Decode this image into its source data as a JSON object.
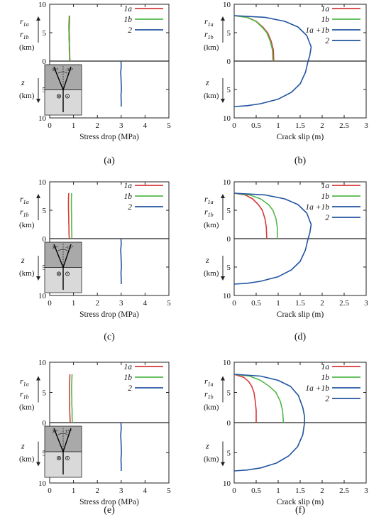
{
  "colors": {
    "series_1a": "#d63a3a",
    "series_1b": "#52b84a",
    "series_2": "#2255a0",
    "axis": "#222222",
    "inset_dark": "#a9a9a9",
    "inset_light": "#d9d9d9"
  },
  "side_labels": {
    "upper_r1a": "r",
    "upper_r1a_sub": "1a",
    "upper_r1b": "r",
    "upper_r1b_sub": "1b",
    "upper_unit": "(km)",
    "lower_z": "z",
    "lower_unit": "(km)"
  },
  "chart_data": [
    {
      "id": "a",
      "type": "line",
      "panel_label": "(a)",
      "xlabel": "Stress drop (MPa)",
      "xlim": [
        0,
        5
      ],
      "ylim": [
        -10,
        10
      ],
      "x_ticks": [
        "0",
        "1",
        "2",
        "3",
        "4",
        "5"
      ],
      "y_ticks": [
        "10",
        "5",
        "0",
        "5",
        "10"
      ],
      "inset": {
        "angle_left": "30°",
        "angle_right": "-30°"
      },
      "legend": [
        {
          "name": "1a",
          "color": "#d63a3a"
        },
        {
          "name": "1b",
          "color": "#52b84a"
        },
        {
          "name": "2",
          "color": "#2255a0"
        }
      ],
      "series": [
        {
          "name": "1a",
          "x": [
            0.85,
            0.84,
            0.84,
            0.83,
            0.83,
            0.82,
            0.82,
            0.83,
            0.84
          ],
          "y": [
            0,
            1,
            2,
            3,
            4,
            5,
            6,
            7,
            8
          ]
        },
        {
          "name": "1b",
          "x": [
            0.83,
            0.83,
            0.82,
            0.82,
            0.81,
            0.81,
            0.8,
            0.81,
            0.82
          ],
          "y": [
            0,
            1,
            2,
            3,
            4,
            5,
            6,
            7,
            8
          ]
        },
        {
          "name": "2",
          "x": [
            2.99,
            3.0,
            2.98,
            2.99,
            3.0,
            3.01,
            2.99,
            3.0,
            3.0
          ],
          "y": [
            0,
            -1,
            -2,
            -3,
            -4,
            -5,
            -6,
            -7,
            -8
          ]
        }
      ]
    },
    {
      "id": "b",
      "type": "line",
      "panel_label": "(b)",
      "xlabel": "Crack slip (m)",
      "xlim": [
        0,
        3
      ],
      "ylim": [
        -10,
        10
      ],
      "x_ticks": [
        "0",
        "0.5",
        "1",
        "1.5",
        "2",
        "2.5",
        "3"
      ],
      "y_ticks": [
        "10",
        "5",
        "0",
        "5",
        "10"
      ],
      "legend": [
        {
          "name": "1a",
          "color": "#d63a3a"
        },
        {
          "name": "1b",
          "color": "#52b84a"
        },
        {
          "name": "1a +1b",
          "color": "#2255a0"
        },
        {
          "name": "2",
          "color": "#2255a0"
        }
      ],
      "series": [
        {
          "name": "1a",
          "x": [
            0.0,
            0.3,
            0.5,
            0.65,
            0.76,
            0.84,
            0.89,
            0.9
          ],
          "y": [
            8,
            7.7,
            7,
            6,
            5,
            3.5,
            2,
            0
          ]
        },
        {
          "name": "1b",
          "x": [
            0.0,
            0.29,
            0.49,
            0.63,
            0.74,
            0.82,
            0.87,
            0.88
          ],
          "y": [
            8,
            7.7,
            7,
            6,
            5,
            3.5,
            2,
            0
          ]
        },
        {
          "name": "1a +1b",
          "x": [
            0.0,
            0.7,
            1.15,
            1.45,
            1.65,
            1.75,
            1.72,
            1.68
          ],
          "y": [
            8,
            7.7,
            7,
            6,
            4.5,
            2.5,
            1,
            0
          ]
        },
        {
          "name": "2",
          "x": [
            1.68,
            1.62,
            1.5,
            1.3,
            1.0,
            0.6,
            0.3,
            0.0
          ],
          "y": [
            0,
            -2,
            -4,
            -5.5,
            -6.7,
            -7.5,
            -7.85,
            -8
          ]
        }
      ]
    },
    {
      "id": "c",
      "type": "line",
      "panel_label": "(c)",
      "xlabel": "Stress drop (MPa)",
      "xlim": [
        0,
        5
      ],
      "ylim": [
        -10,
        10
      ],
      "x_ticks": [
        "0",
        "1",
        "2",
        "3",
        "4",
        "5"
      ],
      "y_ticks": [
        "10",
        "5",
        "0",
        "5",
        "10"
      ],
      "inset": {
        "angle_left": "30°",
        "angle_right": "-15°"
      },
      "legend": [
        {
          "name": "1a",
          "color": "#d63a3a"
        },
        {
          "name": "1b",
          "color": "#52b84a"
        },
        {
          "name": "2",
          "color": "#2255a0"
        }
      ],
      "series": [
        {
          "name": "1a",
          "x": [
            0.82,
            0.81,
            0.81,
            0.8,
            0.8,
            0.79,
            0.79,
            0.79,
            0.8
          ],
          "y": [
            0,
            1,
            2,
            3,
            4,
            5,
            6,
            7,
            8
          ]
        },
        {
          "name": "1b",
          "x": [
            0.93,
            0.93,
            0.92,
            0.92,
            0.92,
            0.91,
            0.91,
            0.91,
            0.92
          ],
          "y": [
            0,
            1,
            2,
            3,
            4,
            5,
            6,
            7,
            8
          ]
        },
        {
          "name": "2",
          "x": [
            2.99,
            3.0,
            2.98,
            2.99,
            3.0,
            3.01,
            2.99,
            3.0,
            3.0
          ],
          "y": [
            0,
            -1,
            -2,
            -3,
            -4,
            -5,
            -6,
            -7,
            -8
          ]
        }
      ]
    },
    {
      "id": "d",
      "type": "line",
      "panel_label": "(d)",
      "xlabel": "Crack slip (m)",
      "xlim": [
        0,
        3
      ],
      "ylim": [
        -10,
        10
      ],
      "x_ticks": [
        "0",
        "0.5",
        "1",
        "1.5",
        "2",
        "2.5",
        "3"
      ],
      "y_ticks": [
        "10",
        "5",
        "0",
        "5",
        "10"
      ],
      "legend": [
        {
          "name": "1a",
          "color": "#d63a3a"
        },
        {
          "name": "1b",
          "color": "#52b84a"
        },
        {
          "name": "1a +1b",
          "color": "#2255a0"
        },
        {
          "name": "2",
          "color": "#2255a0"
        }
      ],
      "series": [
        {
          "name": "1a",
          "x": [
            0.0,
            0.25,
            0.42,
            0.55,
            0.64,
            0.7,
            0.73,
            0.74
          ],
          "y": [
            8,
            7.7,
            7,
            6,
            5,
            3.5,
            2,
            0
          ]
        },
        {
          "name": "1b",
          "x": [
            0.0,
            0.35,
            0.6,
            0.78,
            0.88,
            0.95,
            0.98,
            0.98
          ],
          "y": [
            8,
            7.7,
            7,
            6,
            5,
            3.5,
            2,
            0
          ]
        },
        {
          "name": "1a +1b",
          "x": [
            0.0,
            0.7,
            1.15,
            1.45,
            1.65,
            1.75,
            1.72,
            1.68
          ],
          "y": [
            8,
            7.7,
            7,
            6,
            4.5,
            2.5,
            1,
            0
          ]
        },
        {
          "name": "2",
          "x": [
            1.68,
            1.62,
            1.5,
            1.3,
            1.0,
            0.6,
            0.3,
            0.0
          ],
          "y": [
            0,
            -2,
            -4,
            -5.5,
            -6.7,
            -7.5,
            -7.85,
            -8
          ]
        }
      ]
    },
    {
      "id": "e",
      "type": "line",
      "panel_label": "(e)",
      "xlabel": "Stress drop (MPa)",
      "xlim": [
        0,
        5
      ],
      "ylim": [
        -10,
        10
      ],
      "x_ticks": [
        "0",
        "1",
        "2",
        "3",
        "4",
        "5"
      ],
      "y_ticks": [
        "10",
        "5",
        "0",
        "5",
        "10"
      ],
      "inset": {
        "angle_left": "30°",
        "angle_right": "15°"
      },
      "legend": [
        {
          "name": "1a",
          "color": "#d63a3a"
        },
        {
          "name": "1b",
          "color": "#52b84a"
        },
        {
          "name": "2",
          "color": "#2255a0"
        }
      ],
      "series": [
        {
          "name": "1a",
          "x": [
            0.86,
            0.85,
            0.84,
            0.84,
            0.83,
            0.83,
            0.83,
            0.84,
            0.85
          ],
          "y": [
            0,
            1,
            2,
            3,
            4,
            5,
            6,
            7,
            8
          ]
        },
        {
          "name": "1b",
          "x": [
            0.95,
            0.94,
            0.94,
            0.93,
            0.93,
            0.92,
            0.92,
            0.93,
            0.94
          ],
          "y": [
            0,
            1,
            2,
            3,
            4,
            5,
            6,
            7,
            8
          ]
        },
        {
          "name": "2",
          "x": [
            2.99,
            3.0,
            2.98,
            2.99,
            3.0,
            3.01,
            2.99,
            3.0,
            3.0
          ],
          "y": [
            0,
            -1,
            -2,
            -3,
            -4,
            -5,
            -6,
            -7,
            -8
          ]
        }
      ]
    },
    {
      "id": "f",
      "type": "line",
      "panel_label": "(f)",
      "xlabel": "Crack slip (m)",
      "xlim": [
        0,
        3
      ],
      "ylim": [
        -10,
        10
      ],
      "x_ticks": [
        "0",
        "0.5",
        "1",
        "1.5",
        "2",
        "2.5",
        "3"
      ],
      "y_ticks": [
        "10",
        "5",
        "0",
        "5",
        "10"
      ],
      "legend": [
        {
          "name": "1a",
          "color": "#d63a3a"
        },
        {
          "name": "1b",
          "color": "#52b84a"
        },
        {
          "name": "1a +1b",
          "color": "#2255a0"
        },
        {
          "name": "2",
          "color": "#2255a0"
        }
      ],
      "series": [
        {
          "name": "1a",
          "x": [
            0.0,
            0.22,
            0.33,
            0.4,
            0.45,
            0.48,
            0.5,
            0.5
          ],
          "y": [
            8,
            7.5,
            6.8,
            6,
            5,
            3.5,
            2,
            0
          ]
        },
        {
          "name": "1b",
          "x": [
            0.0,
            0.35,
            0.6,
            0.8,
            0.95,
            1.05,
            1.1,
            1.12
          ],
          "y": [
            8,
            7.7,
            7,
            6,
            5,
            3.5,
            2,
            0
          ]
        },
        {
          "name": "1a +1b",
          "x": [
            0.0,
            0.6,
            1.0,
            1.28,
            1.46,
            1.56,
            1.6,
            1.6
          ],
          "y": [
            8,
            7.7,
            7,
            6,
            4.5,
            2.5,
            1,
            0
          ]
        },
        {
          "name": "2",
          "x": [
            1.6,
            1.56,
            1.44,
            1.24,
            0.96,
            0.6,
            0.3,
            0.0
          ],
          "y": [
            0,
            -2,
            -4,
            -5.5,
            -6.7,
            -7.5,
            -7.85,
            -8
          ]
        }
      ]
    }
  ]
}
